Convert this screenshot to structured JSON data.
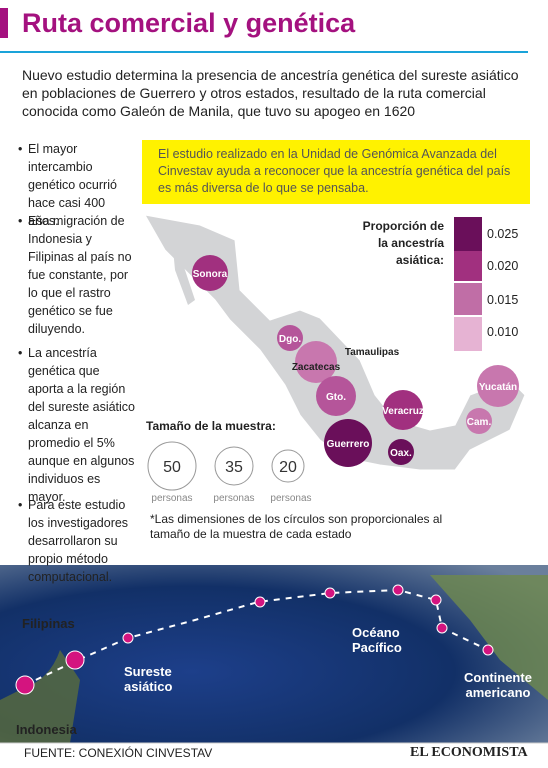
{
  "header": {
    "title": "Ruta comercial y genética"
  },
  "intro": "Nuevo estudio determina la presencia de ancestría genética del sureste asiático en poblaciones de Guerrero y otros estados, resultado de la ruta comercial conocida como Galeón de Manila, que tuvo su apogeo en 1620",
  "bullets": [
    "El mayor intercambio genético ocurrió hace casi 400 años.",
    "Esa migración de Indonesia y Filipinas al país no fue constante, por lo que el rastro genético se fue diluyendo.",
    "La ancestría genética que aporta a la región del sureste asiático alcanza en promedio el 5% aunque en algunos individuos es mayor.",
    "Para este estudio los investigadores desarrollaron su propio método computacional."
  ],
  "highlight": "El estudio realizado en la Unidad de Genómica Avanzada del Cinvestav ayuda a reconocer que la ancestría genética del país es más diversa de lo que se pensaba.",
  "legend": {
    "title": "Proporción de la ancestría asiática:",
    "levels": [
      "0.025",
      "0.020",
      "0.015",
      "0.010"
    ]
  },
  "states": [
    "Sonora",
    "Dgo.",
    "Zacatecas",
    "Tamaulipas",
    "Gto.",
    "Veracruz",
    "Guerrero",
    "Oax.",
    "Yucatán",
    "Cam."
  ],
  "sample": {
    "title": "Tamaño de la muestra:",
    "circles": [
      {
        "label": "50",
        "unit": "personas"
      },
      {
        "label": "35",
        "unit": "personas"
      },
      {
        "label": "20",
        "unit": "personas"
      }
    ]
  },
  "note": "*Las dimensiones de los círculos son proporcionales al tamaño de la muestra de cada estado",
  "route": [
    "Filipinas",
    "Indonesia",
    "Sureste asiático",
    "Océano Pacífico",
    "Continente americano"
  ],
  "footer": {
    "source": "FUENTE: CONEXIÓN CINVESTAV",
    "brand": "EL ECONOMISTA"
  }
}
